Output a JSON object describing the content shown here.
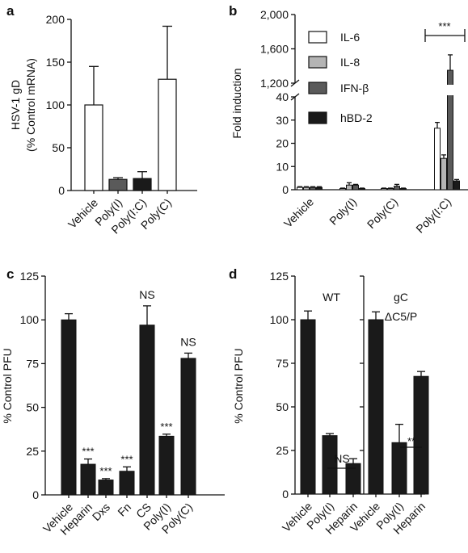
{
  "colors": {
    "white": "#ffffff",
    "light_gray": "#b4b4b4",
    "dark_gray": "#5a5a5a",
    "black": "#1a1a1a"
  },
  "chart_data": [
    {
      "panel": "a",
      "type": "bar",
      "ylabel": "HSV-1 gD",
      "ylabel2": "(% Control mRNA)",
      "ylim": [
        0,
        200
      ],
      "yticks": [
        0,
        50,
        100,
        150,
        200
      ],
      "categories": [
        "Vehicle",
        "Poly(I)",
        "Poly(I:C)",
        "Poly(C)"
      ],
      "values": [
        100,
        13,
        14,
        130
      ],
      "errors": [
        45,
        2,
        8,
        62
      ],
      "bar_colors": [
        "white",
        "dark_gray",
        "black",
        "white"
      ]
    },
    {
      "panel": "b",
      "type": "bar",
      "ylabel": "Fold induction",
      "axis_break": true,
      "ylim_lower": [
        0,
        40
      ],
      "yticks_lower": [
        0,
        10,
        20,
        30,
        40
      ],
      "ylim_upper": [
        1200,
        2000
      ],
      "yticks_upper": [
        "1,200",
        "1,600",
        "2,000"
      ],
      "categories": [
        "Vehicle",
        "Poly(I)",
        "Poly(C)",
        "Poly(I:C)"
      ],
      "series": [
        {
          "name": "IL-6",
          "color": "white",
          "values": [
            1,
            0.5,
            0.5,
            26.5
          ],
          "errors": [
            0.3,
            0.2,
            0.2,
            2.5
          ]
        },
        {
          "name": "IL-8",
          "color": "light_gray",
          "values": [
            1,
            2,
            0.5,
            13.5
          ],
          "errors": [
            0.3,
            1,
            0.2,
            1.5
          ]
        },
        {
          "name": "IFN-β",
          "color": "dark_gray",
          "values": [
            1,
            2,
            1.5,
            1350
          ],
          "errors": [
            0.3,
            0.3,
            0.8,
            180
          ]
        },
        {
          "name": "hBD-2",
          "color": "black",
          "values": [
            1,
            0.5,
            0.5,
            3.8
          ],
          "errors": [
            0.3,
            0.2,
            0.2,
            0.6
          ]
        }
      ],
      "significance": "***"
    },
    {
      "panel": "c",
      "type": "bar",
      "ylabel": "% Control PFU",
      "ylim": [
        0,
        125
      ],
      "yticks": [
        0,
        25,
        50,
        75,
        100,
        125
      ],
      "categories": [
        "Vehicle",
        "Heparin",
        "Dxs",
        "Fn",
        "CS",
        "Poly(I)",
        "Poly(C)"
      ],
      "values": [
        100,
        17.5,
        8.5,
        13.5,
        97,
        33.5,
        78
      ],
      "errors": [
        3.5,
        3,
        0.8,
        2.5,
        11,
        1.2,
        3
      ],
      "labels": [
        "",
        "***",
        "***",
        "***",
        "NS",
        "***",
        "NS"
      ]
    },
    {
      "panel": "d",
      "type": "bar",
      "ylabel": "% Control PFU",
      "ylim": [
        0,
        125
      ],
      "yticks": [
        0,
        25,
        50,
        75,
        100,
        125
      ],
      "groups": [
        {
          "title": "WT",
          "title2": "",
          "categories": [
            "Vehicle",
            "Poly(I)",
            "Heparin"
          ],
          "values": [
            100,
            33.5,
            17.5
          ],
          "errors": [
            5,
            1.2,
            2.8
          ],
          "comparison": "NS"
        },
        {
          "title": "gC",
          "title2": "ΔC5/P",
          "categories": [
            "Vehicle",
            "Poly(I)",
            "Heparin"
          ],
          "values": [
            100,
            29.5,
            67.5
          ],
          "errors": [
            4.5,
            10.5,
            2.8
          ],
          "comparison": "**"
        }
      ]
    }
  ]
}
